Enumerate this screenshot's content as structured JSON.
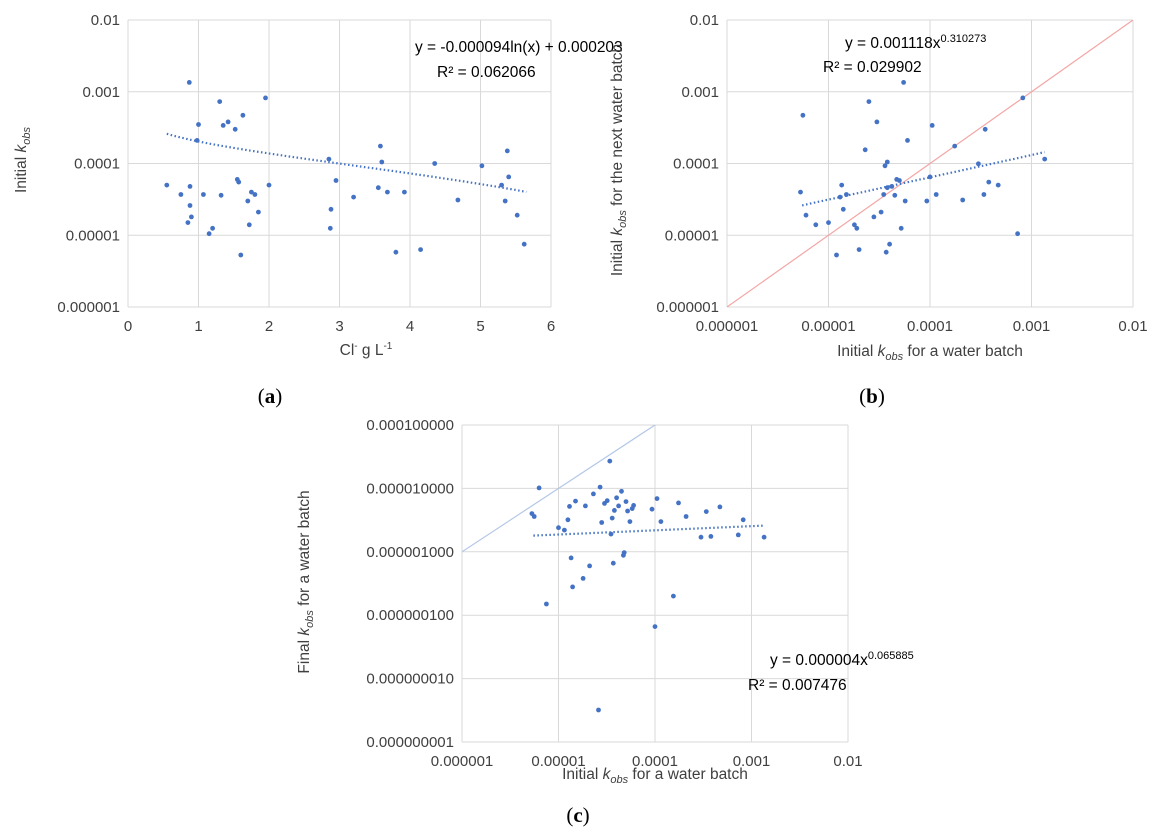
{
  "figure": {
    "panels": [
      {
        "label": "(a)",
        "bold": "a"
      },
      {
        "label": "(b)",
        "bold": "b"
      },
      {
        "label": "(c)",
        "bold": "c"
      }
    ]
  },
  "chart_data": [
    {
      "id": "a",
      "type": "scatter",
      "xscale": "linear",
      "yscale": "log",
      "xlim": [
        0,
        6
      ],
      "ylim": [
        1e-06,
        0.01
      ],
      "xticks": [
        "0",
        "1",
        "2",
        "3",
        "4",
        "5",
        "6"
      ],
      "yticks": [
        "0.000001",
        "0.00001",
        "0.0001",
        "0.001",
        "0.01"
      ],
      "xlabel": "Cl⁻ g L⁻¹",
      "xlabel_parts": [
        "Cl",
        "-",
        " g L",
        "-1"
      ],
      "ylabel": "Initial kobs",
      "ylabel_parts": [
        "Initial ",
        "k",
        "obs"
      ],
      "grid": true,
      "equation": "y = -0.000094ln(x) + 0.000203",
      "r2": "R² = 0.062066",
      "trendline": {
        "kind": "log",
        "a": -9.4e-05,
        "b": 0.000203,
        "x_range": [
          0.55,
          5.65
        ]
      },
      "x": [
        0.55,
        0.75,
        0.85,
        0.87,
        0.88,
        0.88,
        0.9,
        0.98,
        1.0,
        1.07,
        1.15,
        1.2,
        1.3,
        1.32,
        1.35,
        1.42,
        1.52,
        1.55,
        1.57,
        1.6,
        1.63,
        1.7,
        1.72,
        1.75,
        1.8,
        1.85,
        1.95,
        2.0,
        2.85,
        2.87,
        2.88,
        2.95,
        3.2,
        3.55,
        3.58,
        3.6,
        3.68,
        3.8,
        3.92,
        4.15,
        4.35,
        4.68,
        5.02,
        5.3,
        5.35,
        5.38,
        5.4,
        5.52,
        5.62
      ],
      "y": [
        5e-05,
        3.7e-05,
        1.5e-05,
        0.00135,
        4.8e-05,
        2.6e-05,
        1.8e-05,
        0.00021,
        0.00035,
        3.7e-05,
        1.05e-05,
        1.25e-05,
        0.00073,
        3.6e-05,
        0.00034,
        0.00038,
        0.0003,
        6e-05,
        5.5e-05,
        5.3e-06,
        0.00047,
        3e-05,
        1.4e-05,
        4e-05,
        3.7e-05,
        2.1e-05,
        0.00082,
        5e-05,
        0.000115,
        1.25e-05,
        2.3e-05,
        5.8e-05,
        3.4e-05,
        4.6e-05,
        0.000175,
        0.000105,
        4e-05,
        5.8e-06,
        4e-05,
        6.3e-06,
        0.0001,
        3.1e-05,
        9.3e-05,
        5e-05,
        3e-05,
        0.00015,
        6.5e-05,
        1.9e-05,
        7.5e-06
      ]
    },
    {
      "id": "b",
      "type": "scatter",
      "xscale": "log",
      "yscale": "log",
      "xlim": [
        1e-06,
        0.01
      ],
      "ylim": [
        1e-06,
        0.01
      ],
      "xticks": [
        "0.000001",
        "0.00001",
        "0.0001",
        "0.001",
        "0.01"
      ],
      "yticks": [
        "0.000001",
        "0.00001",
        "0.0001",
        "0.001",
        "0.01"
      ],
      "xlabel": "Initial kobs for a water batch",
      "xlabel_parts": [
        "Initial ",
        "k",
        "obs",
        " for a water batch"
      ],
      "ylabel": "Initial kobs for the next water batch",
      "ylabel_parts": [
        "Initial ",
        "k",
        "obs",
        " for the next water batch"
      ],
      "grid": true,
      "equation": "y = 0.001118x^0.310273",
      "equation_parts": [
        "y = 0.001118x",
        "0.310273"
      ],
      "r2": "R² = 0.029902",
      "trendline": {
        "kind": "power",
        "a": 0.001118,
        "b": 0.310273,
        "x_range": [
          5.5e-06,
          0.00135
        ]
      },
      "reference_line": {
        "kind": "identity",
        "color": "#f4a6a6"
      },
      "x": [
        5.3e-06,
        5.6e-06,
        6e-06,
        7.5e-06,
        1e-05,
        1.2e-05,
        1.3e-05,
        1.35e-05,
        1.4e-05,
        1.5e-05,
        1.8e-05,
        1.9e-05,
        2e-05,
        2.3e-05,
        2.5e-05,
        2.8e-05,
        3e-05,
        3.3e-05,
        3.5e-05,
        3.6e-05,
        3.7e-05,
        3.8e-05,
        3.8e-05,
        4e-05,
        4.2e-05,
        4.5e-05,
        4.7e-05,
        5e-05,
        5.2e-05,
        5.5e-05,
        5.7e-05,
        6e-05,
        9.3e-05,
        0.0001,
        0.000105,
        0.000115,
        0.000175,
        0.00021,
        0.0003,
        0.00034,
        0.00035,
        0.00038,
        0.00047,
        0.00073,
        0.00082,
        0.00135
      ],
      "y": [
        4e-05,
        0.00047,
        1.9e-05,
        1.4e-05,
        1.5e-05,
        5.3e-06,
        3.4e-05,
        5e-05,
        2.3e-05,
        3.7e-05,
        1.4e-05,
        1.25e-05,
        6.3e-06,
        0.000155,
        0.00073,
        1.8e-05,
        0.00038,
        2.1e-05,
        3.7e-05,
        9.3e-05,
        5.8e-06,
        0.000105,
        4.6e-05,
        7.5e-06,
        4.8e-05,
        3.6e-05,
        6e-05,
        5.8e-05,
        1.25e-05,
        0.00135,
        3e-05,
        0.00021,
        3e-05,
        6.5e-05,
        0.00034,
        3.7e-05,
        0.000175,
        3.1e-05,
        9.9e-05,
        3.7e-05,
        0.0003,
        5.5e-05,
        5e-05,
        1.05e-05,
        0.00082,
        0.000115
      ]
    },
    {
      "id": "c",
      "type": "scatter",
      "xscale": "log",
      "yscale": "log",
      "xlim": [
        1e-06,
        0.01
      ],
      "ylim": [
        1e-09,
        0.0001
      ],
      "xticks": [
        "0.000001",
        "0.00001",
        "0.0001",
        "0.001",
        "0.01"
      ],
      "yticks": [
        "0.000000001",
        "0.000000010",
        "0.000000100",
        "0.000001000",
        "0.000010000",
        "0.000100000"
      ],
      "xlabel": "Initial kobs for a water batch",
      "xlabel_parts": [
        "Initial ",
        "k",
        "obs",
        " for a water batch"
      ],
      "ylabel": "Final kobs for a water batch",
      "ylabel_parts": [
        "Final ",
        "k",
        "obs",
        " for a water batch"
      ],
      "grid": true,
      "equation": "y = 0.000004x^0.065885",
      "equation_parts": [
        "y = 0.000004x",
        "0.065885"
      ],
      "r2": "R² = 0.007476",
      "trendline": {
        "kind": "power",
        "a": 4e-06,
        "b": 0.065885,
        "x_range": [
          5.5e-06,
          0.00135
        ]
      },
      "reference_line": {
        "kind": "identity",
        "color": "#b4c7e7"
      },
      "x": [
        5.3e-06,
        5.6e-06,
        6.3e-06,
        7.5e-06,
        1e-05,
        1.15e-05,
        1.25e-05,
        1.3e-05,
        1.35e-05,
        1.4e-05,
        1.5e-05,
        1.8e-05,
        1.9e-05,
        2.1e-05,
        2.3e-05,
        2.6e-05,
        2.7e-05,
        2.8e-05,
        3e-05,
        3.2e-05,
        3.4e-05,
        3.5e-05,
        3.6e-05,
        3.7e-05,
        3.8e-05,
        4e-05,
        4.2e-05,
        4.5e-05,
        4.7e-05,
        4.8e-05,
        5e-05,
        5.2e-05,
        5.5e-05,
        5.8e-05,
        6e-05,
        9.3e-05,
        0.0001,
        0.000105,
        0.000115,
        0.000155,
        0.000175,
        0.00021,
        0.0003,
        0.00034,
        0.00038,
        0.00047,
        0.00073,
        0.00082,
        0.00135
      ],
      "y": [
        4e-06,
        3.6e-06,
        1.02e-05,
        1.5e-07,
        2.4e-06,
        2.2e-06,
        3.2e-06,
        5.2e-06,
        8e-07,
        2.8e-07,
        6.3e-06,
        3.8e-07,
        5.3e-06,
        6e-07,
        8.2e-06,
        3.2e-09,
        1.05e-05,
        2.9e-06,
        5.8e-06,
        6.4e-06,
        2.7e-05,
        1.9e-06,
        3.4e-06,
        6.6e-07,
        4.5e-06,
        7.1e-06,
        5.3e-06,
        9e-06,
        8.8e-07,
        9.7e-07,
        6.2e-06,
        4.4e-06,
        3e-06,
        4.8e-06,
        5.4e-06,
        4.7e-06,
        6.6e-08,
        6.9e-06,
        3e-06,
        2e-07,
        5.9e-06,
        3.6e-06,
        1.7e-06,
        4.3e-06,
        1.75e-06,
        5.1e-06,
        1.85e-06,
        3.2e-06,
        1.7e-06
      ]
    }
  ]
}
